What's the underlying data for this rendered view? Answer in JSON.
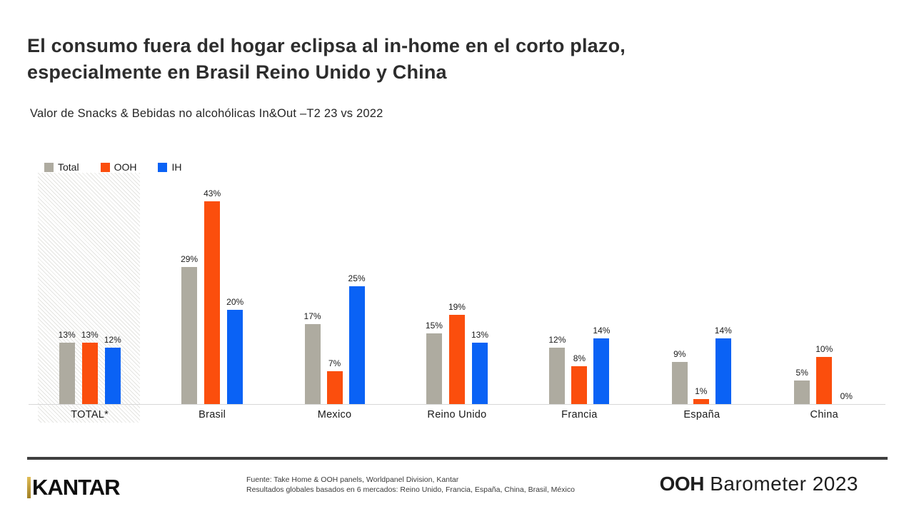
{
  "title": {
    "line1": "El consumo fuera del hogar eclipsa al in-home en el corto plazo,",
    "line2": "especialmente en Brasil Reino Unido y China"
  },
  "subtitle": "Valor de Snacks & Bebidas no alcohólicas In&Out –T2 23 vs 2022",
  "legend": [
    {
      "label": "Total",
      "color": "#aeaba0"
    },
    {
      "label": "OOH",
      "color": "#fb4e0d"
    },
    {
      "label": "IH",
      "color": "#0a62f5"
    }
  ],
  "chart_data": {
    "type": "bar",
    "categories": [
      "TOTAL*",
      "Brasil",
      "Mexico",
      "Reino Unido",
      "Francia",
      "España",
      "China"
    ],
    "series": [
      {
        "name": "Total",
        "color": "#aeaba0",
        "values": [
          13,
          29,
          17,
          15,
          12,
          9,
          5
        ]
      },
      {
        "name": "OOH",
        "color": "#fb4e0d",
        "values": [
          13,
          43,
          7,
          19,
          8,
          1,
          10
        ]
      },
      {
        "name": "IH",
        "color": "#0a62f5",
        "values": [
          12,
          20,
          25,
          13,
          14,
          14,
          0
        ]
      }
    ],
    "value_suffix": "%",
    "ylim": [
      0,
      48
    ],
    "grid": false,
    "legend_position": "top-left",
    "highlighted_category": "TOTAL*",
    "highlight_style": "diagonal-hatch-band"
  },
  "footer": {
    "brand": "KANTAR",
    "source_line1": "Fuente: Take Home & OOH panels, Worldpanel Division, Kantar",
    "source_line2": "Resultados globales basados en 6 mercados: Reino Unido, Francia, España, China, Brasil, México",
    "report_bold": "OOH",
    "report_rest": " Barometer 2023"
  },
  "colors": {
    "total_gray": "#aeaba0",
    "ooh_orange": "#fb4e0d",
    "ih_blue": "#0a62f5",
    "axis_line": "#d8d8d8",
    "footer_rule": "#3f3f3f",
    "brand_gold": "#c7a33b"
  }
}
